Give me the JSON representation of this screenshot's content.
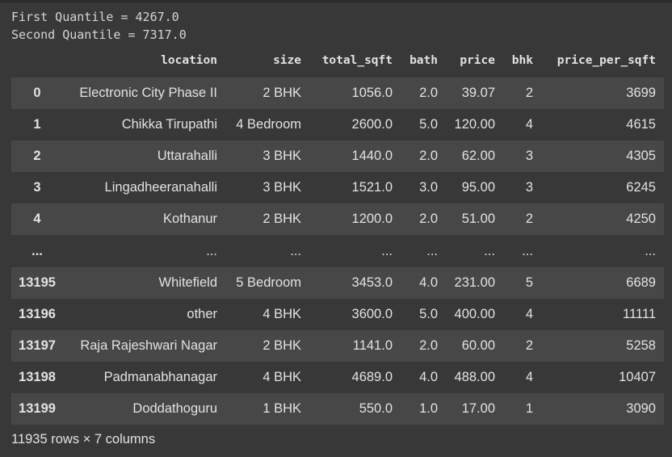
{
  "output_lines": [
    "First Quantile = 4267.0",
    "Second Quantile = 7317.0"
  ],
  "table": {
    "columns": [
      "location",
      "size",
      "total_sqft",
      "bath",
      "price",
      "bhk",
      "price_per_sqft"
    ],
    "rows": [
      {
        "index": "0",
        "cells": [
          "Electronic City Phase II",
          "2 BHK",
          "1056.0",
          "2.0",
          "39.07",
          "2",
          "3699"
        ]
      },
      {
        "index": "1",
        "cells": [
          "Chikka Tirupathi",
          "4 Bedroom",
          "2600.0",
          "5.0",
          "120.00",
          "4",
          "4615"
        ]
      },
      {
        "index": "2",
        "cells": [
          "Uttarahalli",
          "3 BHK",
          "1440.0",
          "2.0",
          "62.00",
          "3",
          "4305"
        ]
      },
      {
        "index": "3",
        "cells": [
          "Lingadheeranahalli",
          "3 BHK",
          "1521.0",
          "3.0",
          "95.00",
          "3",
          "6245"
        ]
      },
      {
        "index": "4",
        "cells": [
          "Kothanur",
          "2 BHK",
          "1200.0",
          "2.0",
          "51.00",
          "2",
          "4250"
        ]
      },
      {
        "index": "...",
        "cells": [
          "...",
          "...",
          "...",
          "...",
          "...",
          "...",
          "..."
        ]
      },
      {
        "index": "13195",
        "cells": [
          "Whitefield",
          "5 Bedroom",
          "3453.0",
          "4.0",
          "231.00",
          "5",
          "6689"
        ]
      },
      {
        "index": "13196",
        "cells": [
          "other",
          "4 BHK",
          "3600.0",
          "5.0",
          "400.00",
          "4",
          "11111"
        ]
      },
      {
        "index": "13197",
        "cells": [
          "Raja Rajeshwari Nagar",
          "2 BHK",
          "1141.0",
          "2.0",
          "60.00",
          "2",
          "5258"
        ]
      },
      {
        "index": "13198",
        "cells": [
          "Padmanabhanagar",
          "4 BHK",
          "4689.0",
          "4.0",
          "488.00",
          "4",
          "10407"
        ]
      },
      {
        "index": "13199",
        "cells": [
          "Doddathoguru",
          "1 BHK",
          "550.0",
          "1.0",
          "17.00",
          "1",
          "3090"
        ]
      }
    ]
  },
  "footer": "11935 rows × 7 columns"
}
